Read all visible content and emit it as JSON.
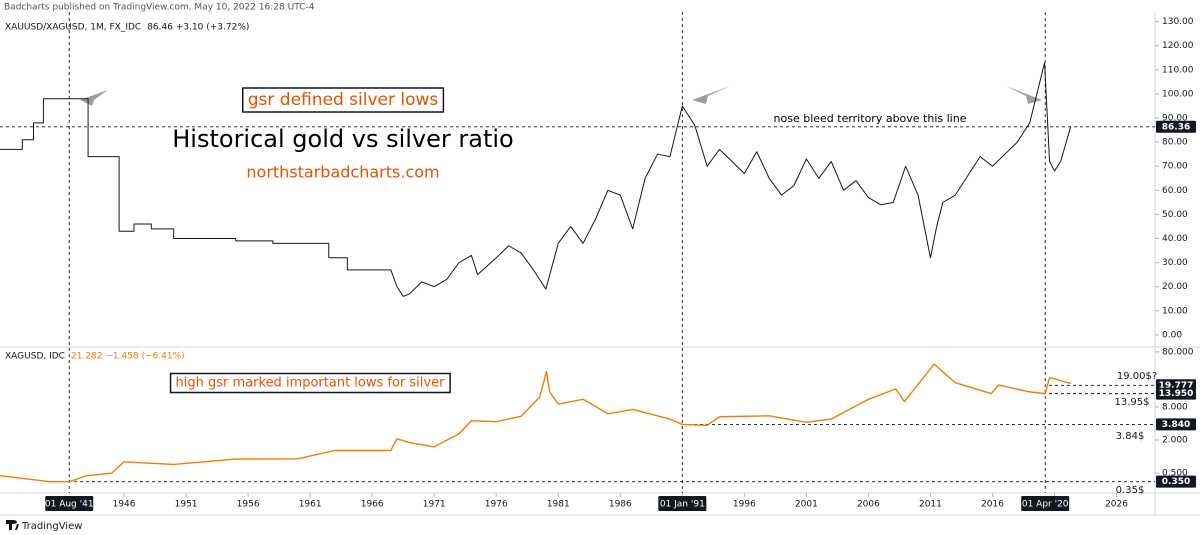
{
  "header": {
    "text": "Badcharts published on TradingView.com, May 10, 2022 16:28 UTC-4"
  },
  "footer": {
    "text": "TradingView"
  },
  "chart_data": [
    {
      "type": "line",
      "symbol": "XAUUSD/XAGUSD, 1M, FX_IDC",
      "status": "86.46 +3.10 (+3.72%)",
      "x": [
        1936,
        1937.8,
        1937.8,
        1938.7,
        1938.7,
        1939.5,
        1939.5,
        1943.1,
        1943.1,
        1945.6,
        1945.6,
        1946.8,
        1946.8,
        1948.2,
        1948.2,
        1950,
        1950,
        1955,
        1955,
        1958,
        1958,
        1962.5,
        1962.5,
        1964,
        1964,
        1967.5,
        1968,
        1968.5,
        1969,
        1970,
        1971,
        1972,
        1973,
        1974,
        1974.5,
        1976,
        1977,
        1978,
        1979,
        1980,
        1981,
        1982,
        1983,
        1984,
        1985,
        1986,
        1987,
        1988,
        1989,
        1990,
        1991,
        1992,
        1993,
        1994,
        1995,
        1996,
        1997,
        1998,
        1999,
        2000,
        2001,
        2002,
        2003,
        2004,
        2005,
        2006,
        2007,
        2008,
        2009,
        2010,
        2011,
        2011.5,
        2012,
        2013,
        2014,
        2015,
        2016,
        2017,
        2018,
        2019,
        2020.2,
        2020.6,
        2021,
        2021.5,
        2022.3
      ],
      "series": [
        {
          "color": "#131722",
          "values": [
            77,
            77,
            81,
            81,
            88,
            88,
            98,
            98,
            74,
            74,
            43,
            43,
            46,
            46,
            44,
            44,
            40,
            40,
            39,
            39,
            38,
            38,
            32,
            32,
            27,
            27,
            20,
            16,
            17,
            22,
            20,
            23,
            30,
            33,
            25,
            32,
            37,
            34,
            27,
            19,
            38,
            45,
            38,
            48,
            60,
            58,
            44,
            65,
            75,
            74,
            95,
            87,
            70,
            77,
            72,
            67,
            76,
            65,
            58,
            62,
            73,
            65,
            72,
            60,
            64,
            57,
            54,
            55,
            70,
            58,
            32,
            45,
            55,
            58,
            66,
            74,
            70,
            75,
            80,
            88,
            113,
            72,
            68,
            72,
            86.36
          ]
        }
      ],
      "xlim": [
        1936,
        2029.1
      ],
      "ylim": [
        -4.6,
        134
      ],
      "yticks": [
        {
          "value": 0,
          "label": "0.00"
        },
        {
          "value": 10,
          "label": "10.00"
        },
        {
          "value": 20,
          "label": "20.00"
        },
        {
          "value": 30,
          "label": "30.00"
        },
        {
          "value": 40,
          "label": "40.00"
        },
        {
          "value": 50,
          "label": "50.00"
        },
        {
          "value": 60,
          "label": "60.00"
        },
        {
          "value": 70,
          "label": "70.00"
        },
        {
          "value": 80,
          "label": "80.00"
        },
        {
          "value": 90,
          "label": "90.00"
        },
        {
          "value": 100,
          "label": "100.00"
        },
        {
          "value": 110,
          "label": "110.00"
        },
        {
          "value": 120,
          "label": "120.00"
        },
        {
          "value": 130,
          "label": "130.00"
        }
      ],
      "hlines": [
        {
          "value": 86.36,
          "label": "86.36"
        }
      ],
      "annotations": [
        {
          "text": "gsr defined silver lows",
          "color": "#e65100",
          "boxed": true
        },
        {
          "text": "Historical gold vs silver ratio",
          "color": "#000000",
          "boxed": false
        },
        {
          "text": "northstarbadcharts.com",
          "color": "#e65100",
          "boxed": false
        },
        {
          "text": "nose bleed territory above this line",
          "color": "#000000",
          "boxed": false
        }
      ],
      "grid": false
    },
    {
      "type": "line",
      "symbol": "XAGUSD, IDC",
      "status": "21.282 −1.458 (−6.41%)",
      "x": [
        1936,
        1940,
        1941.6,
        1943,
        1945,
        1946,
        1950,
        1955,
        1960,
        1963,
        1967.5,
        1968,
        1969,
        1971,
        1973,
        1974,
        1976,
        1978,
        1979.5,
        1980.05,
        1980.3,
        1981,
        1983,
        1985,
        1987,
        1990,
        1991,
        1993,
        1994,
        1998,
        2001,
        2003,
        2006,
        2008.2,
        2008.9,
        2011.3,
        2013,
        2015.9,
        2016.5,
        2019,
        2020.25,
        2020.6,
        2021,
        2022.3
      ],
      "series": [
        {
          "color": "#f57c00",
          "values": [
            0.45,
            0.35,
            0.35,
            0.45,
            0.5,
            0.8,
            0.72,
            0.9,
            0.91,
            1.29,
            1.29,
            2.1,
            1.8,
            1.5,
            2.6,
            4.5,
            4.3,
            5.4,
            12,
            35,
            15,
            9,
            11,
            6.0,
            7.2,
            4.8,
            3.84,
            3.7,
            5.3,
            5.5,
            4.2,
            4.8,
            11,
            17,
            10,
            48,
            22,
            14,
            20,
            15,
            13.95,
            27,
            26,
            21.282
          ]
        }
      ],
      "xlim": [
        1936,
        2029.1
      ],
      "xticks": [
        1946,
        1951,
        1956,
        1961,
        1966,
        1971,
        1976,
        1981,
        1986,
        1991,
        1996,
        2001,
        2006,
        2011,
        2016,
        2021,
        2026
      ],
      "ylim": [
        0.227,
        86.6
      ],
      "log_scale": true,
      "yticks": [
        {
          "value": 80,
          "label": "80.000"
        },
        {
          "value": 8,
          "label": "8.000"
        },
        {
          "value": 2,
          "label": "2.000"
        },
        {
          "value": 0.5,
          "label": "0.500"
        }
      ],
      "hlines": [
        {
          "value": 19.777,
          "label": "19.777"
        },
        {
          "value": 13.95,
          "label": "13.950"
        },
        {
          "value": 3.84,
          "label": "3.840"
        },
        {
          "value": 0.35,
          "label": "0.350"
        }
      ],
      "vlines": [
        {
          "value": 1941.58,
          "label": "01 Aug '41"
        },
        {
          "value": 1991.0,
          "label": "01 Jan '91"
        },
        {
          "value": 2020.25,
          "label": "01 Apr '20"
        }
      ],
      "annotations": [
        {
          "text": "high gsr marked important lows for silver",
          "color": "#e65100",
          "boxed": true
        },
        {
          "text": "19.00$?",
          "color": "#131722",
          "boxed": false
        },
        {
          "text": "13.95$",
          "color": "#131722",
          "boxed": false
        },
        {
          "text": "3.84$",
          "color": "#131722",
          "boxed": false
        },
        {
          "text": "0.35$",
          "color": "#131722",
          "boxed": false
        }
      ],
      "grid": false
    }
  ]
}
